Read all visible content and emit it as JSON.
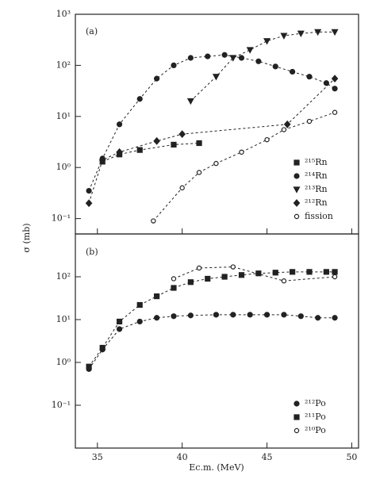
{
  "chart_data": [
    {
      "type": "scatter",
      "label": "(a)",
      "ylabel": "σ (mb)",
      "log_y": true,
      "legend": "lower right",
      "xlim": [
        33.7,
        50.4
      ],
      "xticks": [
        35,
        40,
        45,
        50
      ],
      "ylim": [
        0.05,
        1000
      ],
      "yticks": [
        {
          "value": 0.1,
          "label": "10⁻¹"
        },
        {
          "value": 1,
          "label": "10⁰"
        },
        {
          "value": 10,
          "label": "10¹"
        },
        {
          "value": 100,
          "label": "10²"
        },
        {
          "value": 1000,
          "label": "10³"
        }
      ],
      "series": [
        {
          "name": "²¹⁵Rn",
          "marker": "square",
          "color": "#222",
          "x": [
            35.3,
            36.3,
            37.5,
            39.5,
            41.0
          ],
          "values": [
            1.3,
            1.8,
            2.2,
            2.8,
            3.0
          ]
        },
        {
          "name": "²¹⁴Rn",
          "marker": "circle",
          "color": "#222",
          "x": [
            34.5,
            35.3,
            36.3,
            37.5,
            38.5,
            39.5,
            40.5,
            41.5,
            42.5,
            43.5,
            44.5,
            45.5,
            46.5,
            47.5,
            48.5,
            49.0
          ],
          "values": [
            0.35,
            1.5,
            7,
            22,
            55,
            100,
            140,
            150,
            160,
            140,
            120,
            95,
            75,
            60,
            45,
            35
          ]
        },
        {
          "name": "²¹³Rn",
          "marker": "triangle",
          "color": "#222",
          "x": [
            40.5,
            42.0,
            43.0,
            44.0,
            45.0,
            46.0,
            47.0,
            48.0,
            49.0
          ],
          "values": [
            20,
            60,
            140,
            200,
            300,
            380,
            420,
            450,
            450
          ]
        },
        {
          "name": "²¹²Rn",
          "marker": "diamond",
          "color": "#222",
          "x": [
            34.5,
            35.3,
            36.3,
            38.5,
            40.0,
            46.2,
            49.0
          ],
          "values": [
            0.2,
            1.4,
            2.0,
            3.3,
            4.5,
            7,
            55
          ]
        },
        {
          "name": "fission",
          "marker": "open-circle",
          "color": "#222",
          "x": [
            38.3,
            40.0,
            41.0,
            42.0,
            43.5,
            45.0,
            46.0,
            47.5,
            49.0
          ],
          "values": [
            0.09,
            0.4,
            0.8,
            1.2,
            2.0,
            3.5,
            5.5,
            8,
            12
          ]
        }
      ]
    },
    {
      "type": "scatter",
      "label": "(b)",
      "xlabel": "Ec.m. (MeV)",
      "log_y": true,
      "legend": "lower right",
      "xlim": [
        33.7,
        50.4
      ],
      "xticks": [
        35,
        40,
        45,
        50
      ],
      "ylim": [
        0.01,
        1000
      ],
      "yticks": [
        {
          "value": 0.1,
          "label": "10⁻¹"
        },
        {
          "value": 1,
          "label": "10⁰"
        },
        {
          "value": 10,
          "label": "10¹"
        },
        {
          "value": 100,
          "label": "10²"
        }
      ],
      "series": [
        {
          "name": "²¹²Po",
          "marker": "circle",
          "color": "#222",
          "x": [
            34.5,
            35.3,
            36.3,
            37.5,
            38.5,
            39.5,
            40.5,
            42.0,
            43.0,
            44.0,
            45.0,
            46.0,
            47.0,
            48.0,
            49.0
          ],
          "values": [
            0.7,
            2,
            6,
            9,
            11,
            12,
            12.5,
            13,
            13,
            13,
            13,
            13,
            12,
            11,
            11
          ]
        },
        {
          "name": "²¹¹Po",
          "marker": "square",
          "color": "#222",
          "x": [
            34.5,
            35.3,
            36.3,
            37.5,
            38.5,
            39.5,
            40.5,
            41.5,
            42.5,
            43.5,
            44.5,
            45.5,
            46.5,
            47.5,
            48.5,
            49.0
          ],
          "values": [
            0.8,
            2.2,
            9,
            22,
            35,
            55,
            75,
            90,
            100,
            110,
            120,
            125,
            130,
            130,
            130,
            130
          ]
        },
        {
          "name": "²¹⁰Po",
          "marker": "open-circle",
          "color": "#222",
          "x": [
            39.5,
            41.0,
            43.0,
            46.0,
            49.0
          ],
          "values": [
            90,
            160,
            170,
            80,
            100
          ]
        }
      ]
    }
  ]
}
